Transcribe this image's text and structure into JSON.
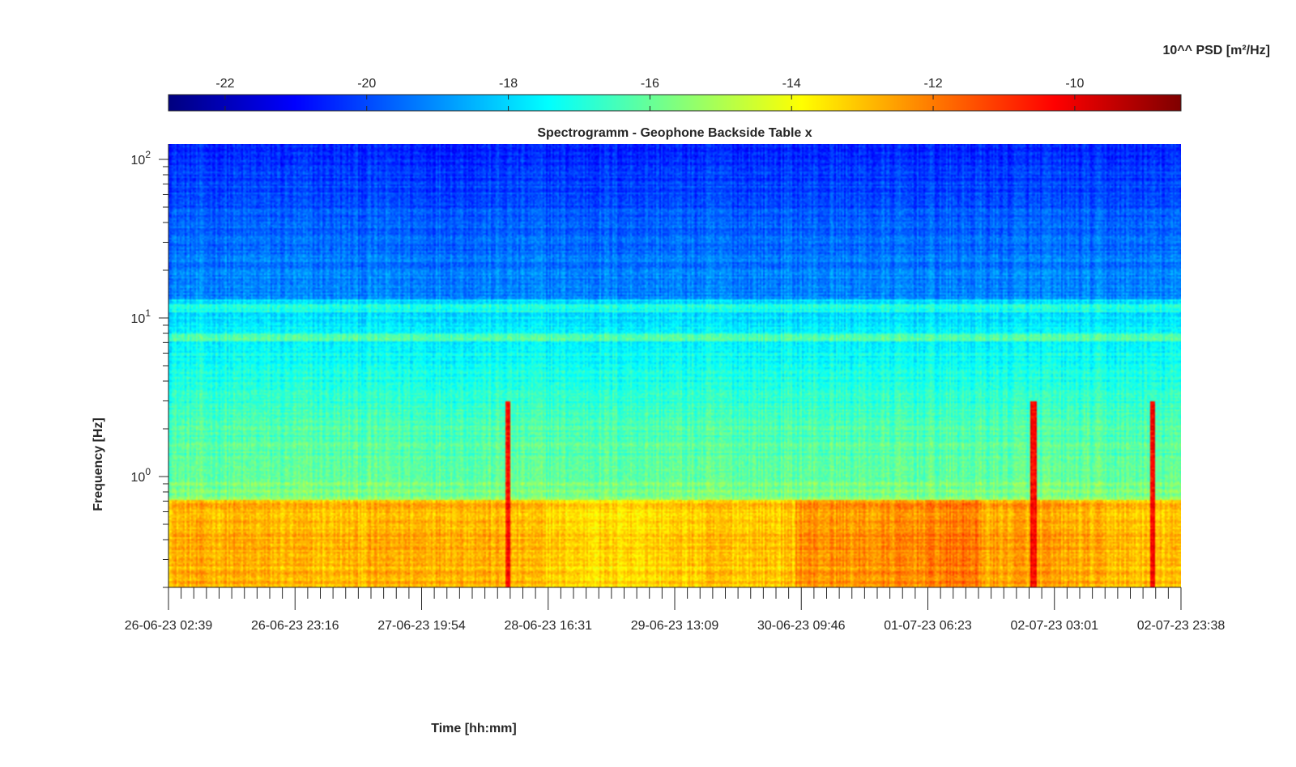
{
  "chart_data": {
    "type": "heatmap",
    "title": "Spectrogramm - Geophone Backside Table x",
    "xlabel": "Time [hh:mm]",
    "ylabel": "Frequency [Hz]",
    "x_tick_labels": [
      "26-06-23 02:39",
      "26-06-23 23:16",
      "27-06-23 19:54",
      "28-06-23 16:31",
      "29-06-23 13:09",
      "30-06-23 09:46",
      "01-07-23 06:23",
      "02-07-23 03:01",
      "02-07-23 23:38"
    ],
    "x_range": [
      "26-06-23 02:39",
      "02-07-23 23:38"
    ],
    "y_scale": "log",
    "ylim": [
      0.2,
      125
    ],
    "y_tick_values": [
      1,
      10,
      100
    ],
    "y_tick_labels": [
      {
        "base": "10",
        "exp": "0"
      },
      {
        "base": "10",
        "exp": "1"
      },
      {
        "base": "10",
        "exp": "2"
      }
    ],
    "colorbar": {
      "label": "10^^ PSD [m²/Hz]",
      "range": [
        -22.8,
        -8.5
      ],
      "tick_values": [
        -22,
        -20,
        -18,
        -16,
        -14,
        -12,
        -10
      ],
      "tick_labels": [
        "-22",
        "-20",
        "-18",
        "-16",
        "-14",
        "-12",
        "-10"
      ],
      "colormap": "jet",
      "colormap_stops": [
        "#00007f",
        "#0000ff",
        "#007fff",
        "#00ffff",
        "#7fff7f",
        "#ffff00",
        "#ff7f00",
        "#ff0000",
        "#7f0000"
      ]
    },
    "features": {
      "high_freq_background_log_psd": -20.5,
      "mid_freq_background_log_psd": -18.0,
      "low_freq_band_log_psd": -13.0,
      "persistent_line_log_psd_at_Hz": {
        "7.5": -16.5,
        "11.5": -17.0
      },
      "broadband_transients_x_fraction": [
        0.335,
        0.855,
        0.973
      ]
    }
  }
}
